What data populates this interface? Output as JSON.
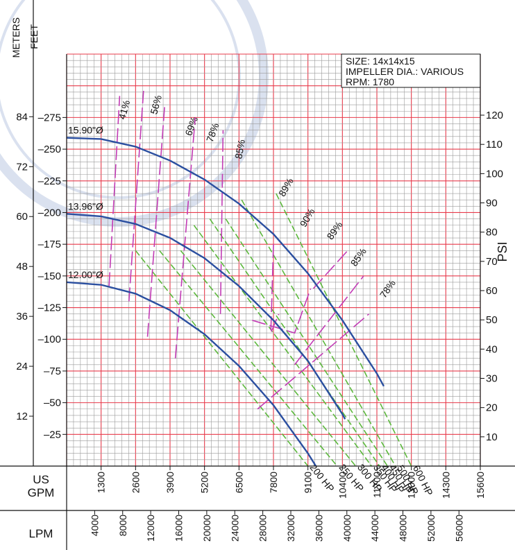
{
  "chart_data": {
    "type": "line",
    "info": {
      "size": "SIZE: 14x14x15",
      "impeller": "IMPELLER DIA.: VARIOUS",
      "rpm": "RPM: 1780"
    },
    "axes": {
      "meters_label": "METERS",
      "feet_label": "FEET",
      "psi_label": "PSI",
      "gpm_label": [
        "US",
        "GPM"
      ],
      "lpm_label": "LPM",
      "x_gpm_range": [
        0,
        15600
      ],
      "y_feet_range": [
        0,
        325
      ],
      "feet_ticks": [
        "25",
        "50",
        "75",
        "100",
        "125",
        "150",
        "175",
        "200",
        "225",
        "250",
        "275"
      ],
      "meters_ticks": [
        "12",
        "24",
        "36",
        "48",
        "60",
        "72",
        "84"
      ],
      "psi_ticks": [
        "10",
        "20",
        "30",
        "40",
        "50",
        "60",
        "70",
        "80",
        "90",
        "100",
        "110",
        "120"
      ],
      "gpm_ticks": [
        "1300",
        "2600",
        "3900",
        "5200",
        "6500",
        "7800",
        "9100",
        "10400",
        "11700",
        "13000",
        "14300",
        "15600"
      ],
      "lpm_ticks": [
        "4000",
        "8000",
        "12000",
        "16000",
        "20000",
        "24000",
        "28000",
        "32000",
        "36000",
        "40000",
        "44000",
        "48000",
        "52000",
        "56000"
      ]
    },
    "series": [
      {
        "name": "15.90\"Ø",
        "x": [
          0,
          1300,
          2600,
          3900,
          5200,
          6500,
          7800,
          9100,
          10400,
          11700,
          11960
        ],
        "y": [
          259,
          258,
          252,
          241,
          226,
          207,
          183,
          152,
          115,
          73,
          63
        ]
      },
      {
        "name": "13.96\"Ø",
        "x": [
          0,
          1300,
          2600,
          3900,
          5200,
          6500,
          7800,
          9100,
          10400,
          10500
        ],
        "y": [
          199,
          197,
          191,
          180,
          164,
          142,
          115,
          83,
          41,
          37
        ]
      },
      {
        "name": "12.00\"Ø",
        "x": [
          0,
          1300,
          2600,
          3900,
          5200,
          6500,
          7800,
          9100,
          9400
        ],
        "y": [
          145,
          143,
          136,
          123,
          104,
          79,
          48,
          10,
          0
        ]
      }
    ],
    "hp_lines": [
      {
        "label": "200 HP",
        "x1": 2600,
        "y1": 170,
        "x2": 9100,
        "y2": 0
      },
      {
        "label": "250 HP",
        "x1": 3500,
        "y1": 170,
        "x2": 10200,
        "y2": 0
      },
      {
        "label": "300 HP",
        "x1": 4300,
        "y1": 170,
        "x2": 10900,
        "y2": 0
      },
      {
        "label": "350 HP",
        "x1": 4800,
        "y1": 190,
        "x2": 11500,
        "y2": 0
      },
      {
        "label": "400 HP",
        "x1": 5400,
        "y1": 195,
        "x2": 11800,
        "y2": 0
      },
      {
        "label": "450 HP",
        "x1": 6000,
        "y1": 195,
        "x2": 12100,
        "y2": 0
      },
      {
        "label": "500 HP",
        "x1": 6600,
        "y1": 210,
        "x2": 12400,
        "y2": 0
      },
      {
        "label": "600 HP",
        "x1": 7900,
        "y1": 215,
        "x2": 13000,
        "y2": 0
      }
    ],
    "efficiency_labels": [
      "41%",
      "56%",
      "69%",
      "78%",
      "85%",
      "89%",
      "90%",
      "89%",
      "85%",
      "78%"
    ]
  }
}
